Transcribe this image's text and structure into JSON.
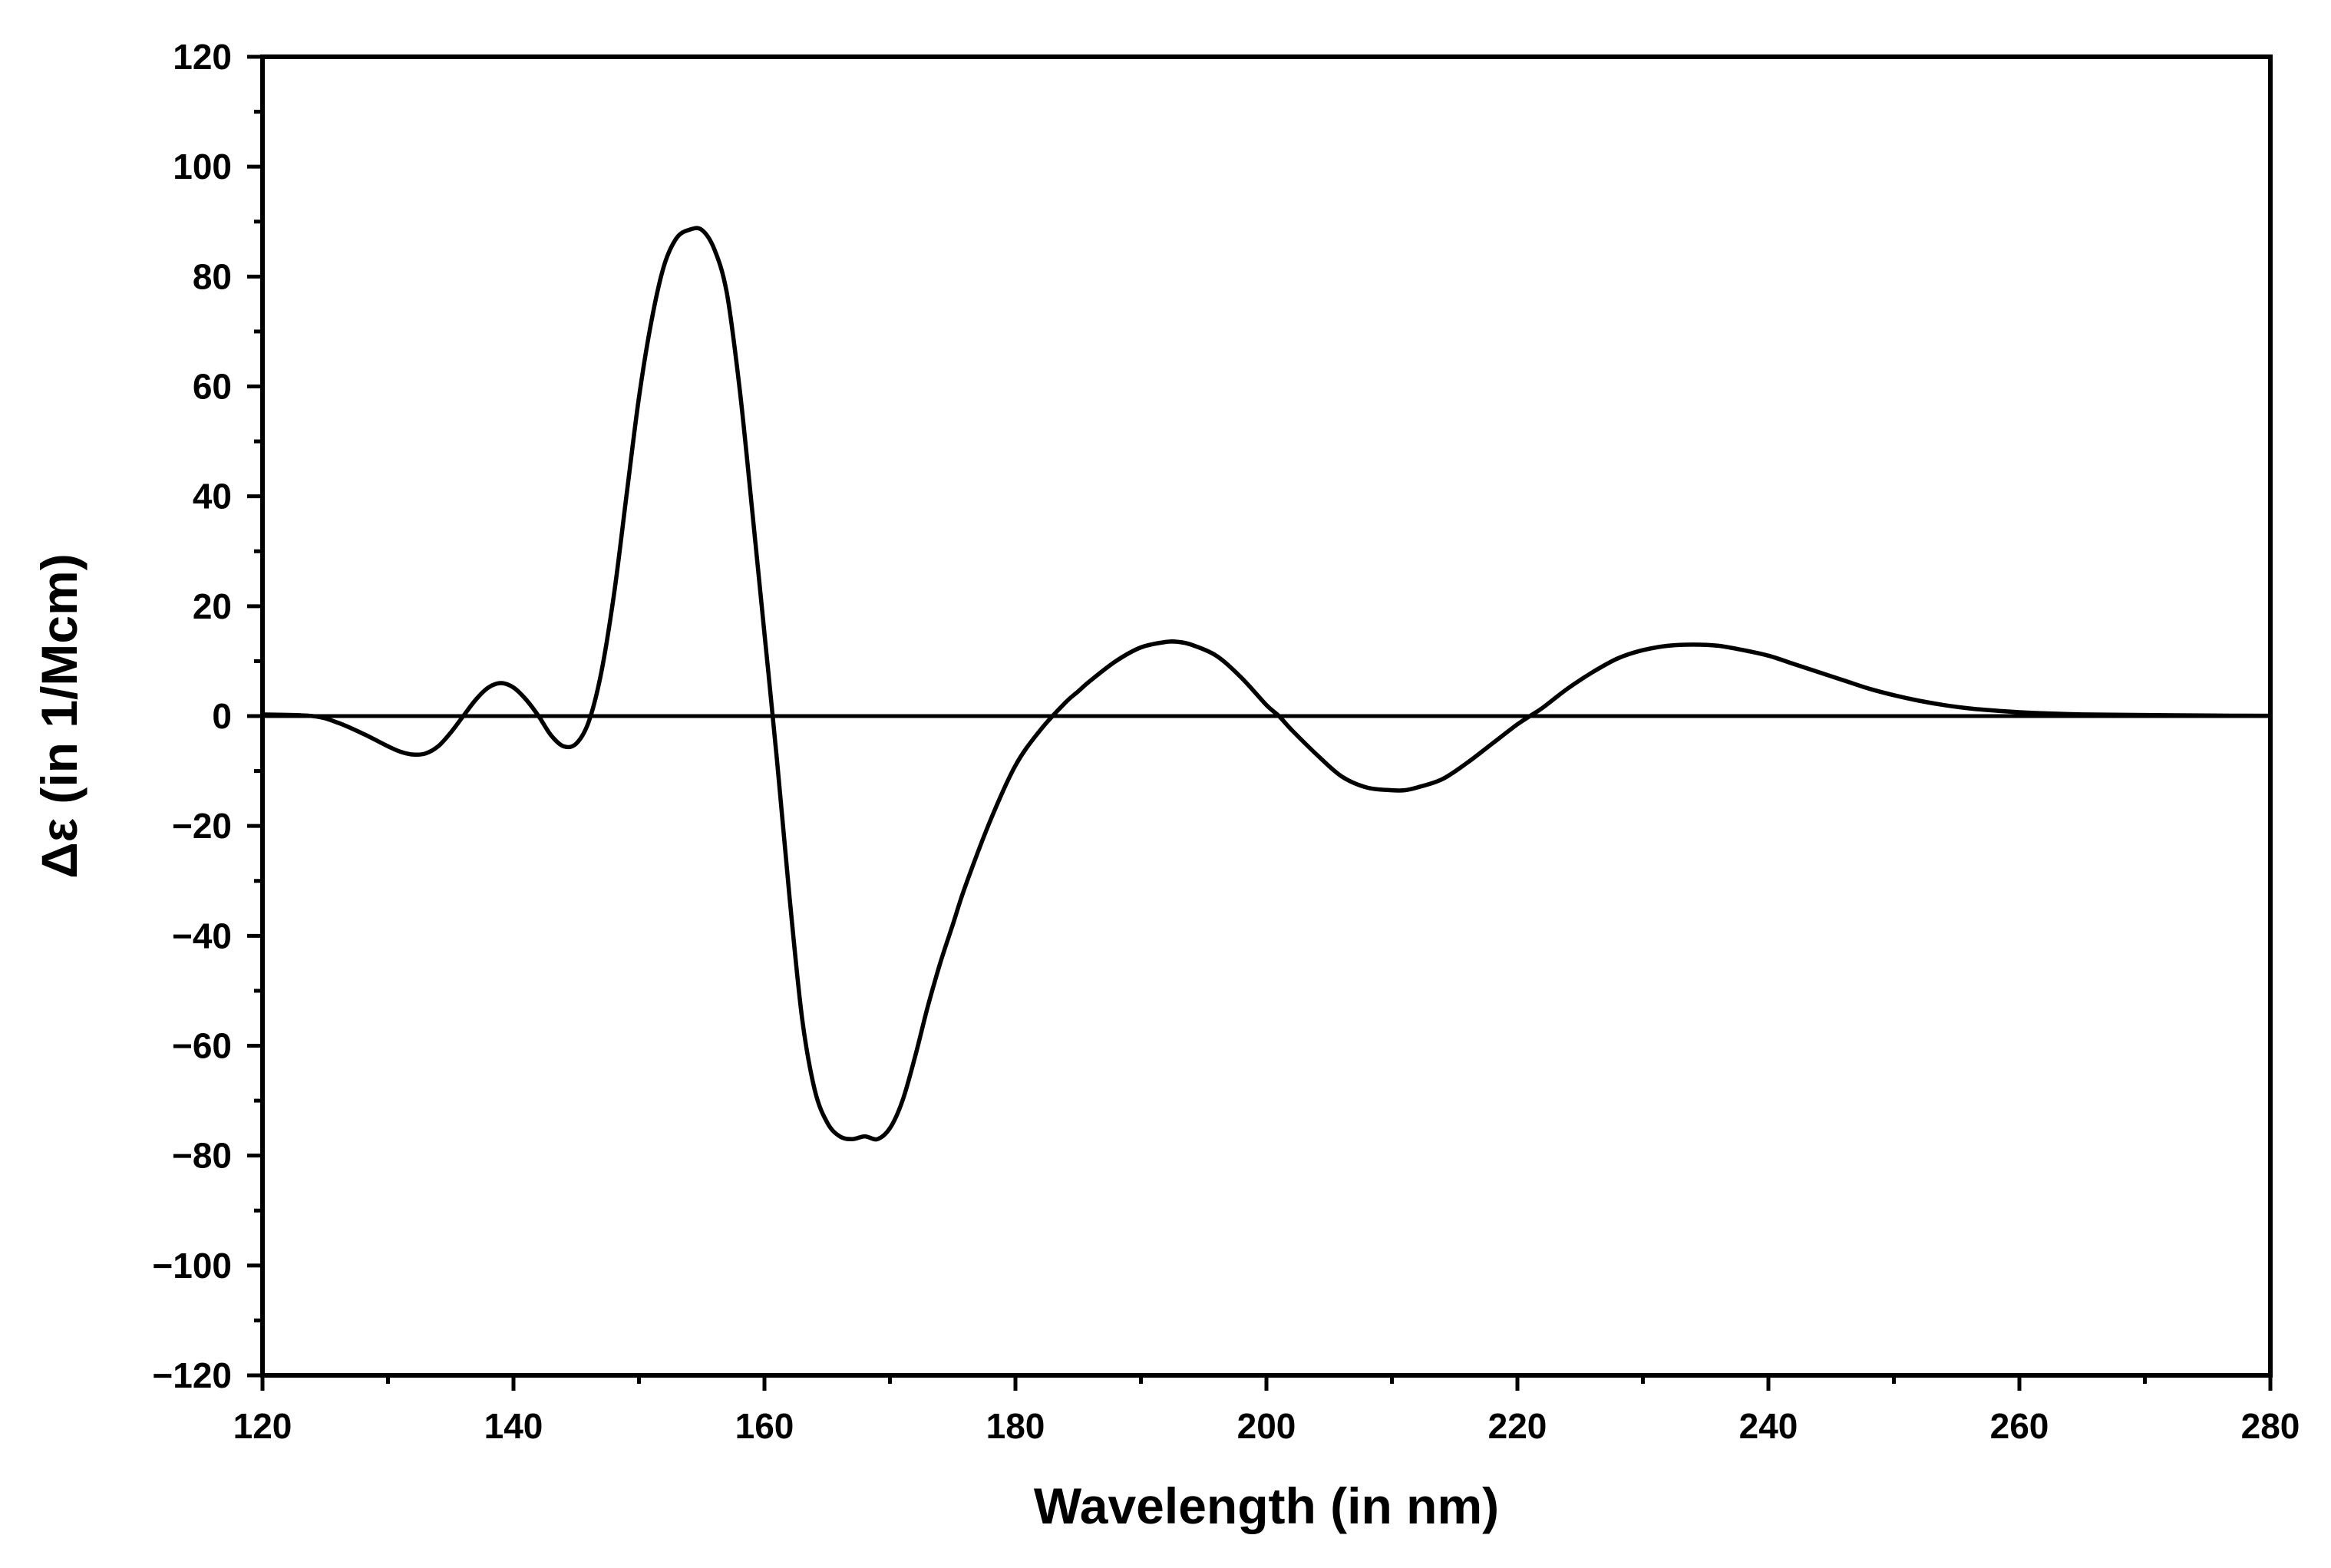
{
  "chart_data": {
    "type": "line",
    "title": "",
    "xlabel": "Wavelength (in nm)",
    "ylabel": "Δε (in 1/Mcm)",
    "xlim": [
      120,
      280
    ],
    "ylim": [
      -120,
      120
    ],
    "x_ticks": [
      120,
      140,
      160,
      180,
      200,
      220,
      240,
      260,
      280
    ],
    "y_ticks": [
      -120,
      -100,
      -80,
      -60,
      -40,
      -20,
      0,
      20,
      40,
      60,
      80,
      100,
      120
    ],
    "x_tick_labels": [
      "120",
      "140",
      "160",
      "180",
      "200",
      "220",
      "240",
      "260",
      "280"
    ],
    "y_tick_labels": [
      "−120",
      "−100",
      "−80",
      "−60",
      "−40",
      "−20",
      "0",
      "20",
      "40",
      "60",
      "80",
      "100",
      "120"
    ],
    "x_minor_step": 10,
    "y_minor_step": 10,
    "grid": false,
    "legend": "none",
    "line_color": "#000000",
    "zero_line": true,
    "series": [
      {
        "x": [
          120,
          124,
          126,
          128,
          130,
          131,
          132,
          133,
          134,
          135,
          136,
          137,
          138,
          139,
          140,
          141,
          142,
          143,
          144,
          145,
          146,
          147,
          148,
          149,
          150,
          151,
          152,
          153,
          154,
          155,
          156,
          157,
          158,
          159,
          160,
          161,
          162,
          163,
          164,
          165,
          166,
          167,
          168,
          169,
          170,
          171,
          172,
          173,
          174,
          175,
          176,
          178,
          180,
          182,
          184,
          185,
          186,
          188,
          190,
          192,
          193,
          194,
          196,
          198,
          200,
          201,
          202,
          204,
          206,
          208,
          210,
          211,
          212,
          214,
          216,
          218,
          220,
          221,
          222,
          224,
          226,
          228,
          230,
          232,
          234,
          236,
          238,
          240,
          242,
          244,
          246,
          248,
          250,
          252,
          254,
          256,
          258,
          260,
          262,
          265,
          270,
          275,
          280
        ],
        "y": [
          0.3,
          0,
          -1.2,
          -3.2,
          -5.5,
          -6.5,
          -7,
          -6.8,
          -5.5,
          -3,
          0,
          3,
          5.2,
          6,
          5.2,
          3,
          0,
          -3.5,
          -5.5,
          -5,
          -1,
          8,
          22,
          40,
          58,
          72,
          82,
          87,
          88.5,
          88.5,
          85,
          77,
          60,
          38,
          15,
          -8,
          -33,
          -55,
          -68,
          -74,
          -76.5,
          -77,
          -76.5,
          -77,
          -75,
          -70,
          -62,
          -53,
          -45,
          -38,
          -31,
          -19,
          -9,
          -2.5,
          2.5,
          4.5,
          6.5,
          10,
          12.5,
          13.5,
          13.5,
          13,
          11,
          7,
          2,
          0,
          -2.5,
          -7,
          -11,
          -13,
          -13.5,
          -13.5,
          -13,
          -11.5,
          -8.5,
          -5,
          -1.5,
          0,
          1.5,
          5,
          8,
          10.5,
          12,
          12.8,
          13,
          12.8,
          12,
          11,
          9.5,
          8,
          6.5,
          5,
          3.8,
          2.8,
          2,
          1.4,
          1,
          0.7,
          0.5,
          0.3,
          0.2,
          0.1,
          0.05
        ]
      }
    ]
  }
}
